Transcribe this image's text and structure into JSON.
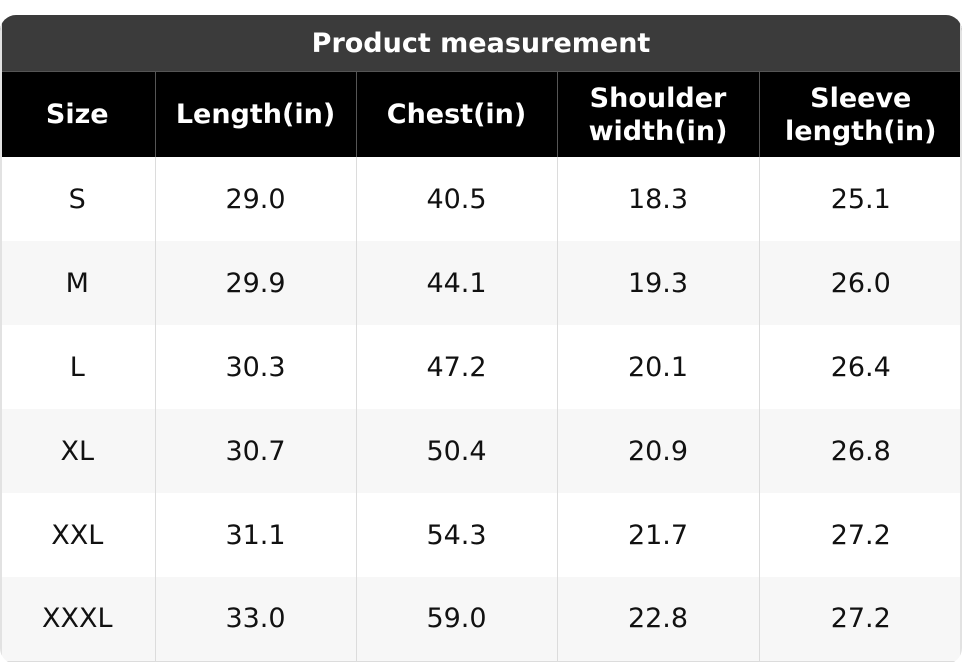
{
  "title": "Product measurement",
  "columns": [
    "Size",
    "Length(in)",
    "Chest(in)",
    "Shoulder width(in)",
    "Sleeve length(in)"
  ],
  "rows": [
    [
      "S",
      "29.0",
      "40.5",
      "18.3",
      "25.1"
    ],
    [
      "M",
      "29.9",
      "44.1",
      "19.3",
      "26.0"
    ],
    [
      "L",
      "30.3",
      "47.2",
      "20.1",
      "26.4"
    ],
    [
      "XL",
      "30.7",
      "50.4",
      "20.9",
      "26.8"
    ],
    [
      "XXL",
      "31.1",
      "54.3",
      "21.7",
      "27.2"
    ],
    [
      "XXXL",
      "33.0",
      "59.0",
      "22.8",
      "27.2"
    ]
  ],
  "colors": {
    "title_bg": "#3b3b3b",
    "header_bg": "#000000",
    "header_text": "#ffffff",
    "row_alt_bg": "#f7f7f7"
  }
}
